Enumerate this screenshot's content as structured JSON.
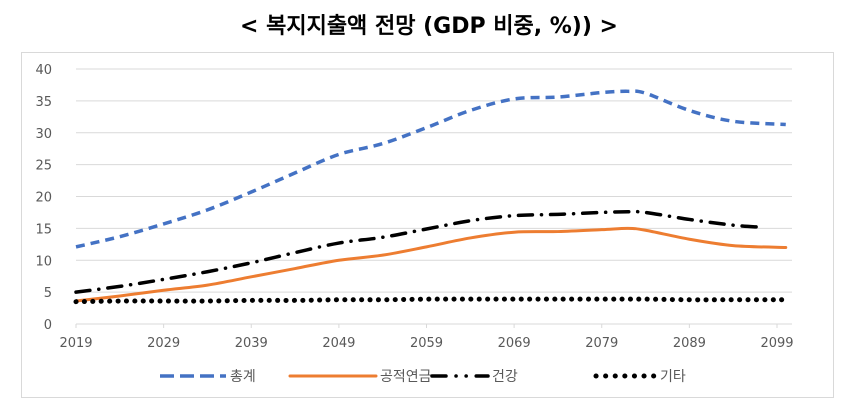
{
  "chart_data": {
    "type": "line",
    "title": "< 복지지출액 전망 (GDP 비중, %)) >",
    "xlabel": "",
    "ylabel": "",
    "ylim": [
      0,
      40
    ],
    "yticks": [
      0,
      5,
      10,
      15,
      20,
      25,
      30,
      35,
      40
    ],
    "xticks": [
      2019,
      2029,
      2039,
      2049,
      2059,
      2069,
      2079,
      2089,
      2099
    ],
    "grid": true,
    "legend_position": "bottom",
    "x": [
      2019,
      2024,
      2029,
      2034,
      2039,
      2044,
      2049,
      2054,
      2059,
      2064,
      2069,
      2074,
      2079,
      2082,
      2084,
      2089,
      2094,
      2100
    ],
    "series": [
      {
        "name": "총계",
        "color": "#4472C4",
        "style": "dash",
        "values": [
          12.1,
          13.7,
          15.7,
          17.9,
          20.7,
          23.7,
          26.6,
          28.3,
          30.8,
          33.5,
          35.3,
          35.6,
          36.3,
          36.5,
          36.2,
          33.5,
          31.8,
          31.3
        ]
      },
      {
        "name": "공적연금",
        "color": "#ED7D31",
        "style": "solid",
        "values": [
          3.6,
          4.4,
          5.3,
          6.1,
          7.4,
          8.7,
          10.0,
          10.8,
          12.1,
          13.5,
          14.4,
          14.5,
          14.8,
          15.0,
          14.7,
          13.3,
          12.3,
          12.0
        ]
      },
      {
        "name": "건강",
        "color": "#000000",
        "style": "longdashdot",
        "values": [
          5.0,
          5.9,
          7.0,
          8.2,
          9.6,
          11.2,
          12.7,
          13.6,
          14.9,
          16.2,
          17.0,
          17.2,
          17.5,
          17.6,
          17.5,
          16.4,
          15.5,
          15.2
        ]
      },
      {
        "name": "기타",
        "color": "#000000",
        "style": "dot",
        "values": [
          3.5,
          3.6,
          3.6,
          3.6,
          3.7,
          3.7,
          3.8,
          3.8,
          3.9,
          3.9,
          3.9,
          3.9,
          3.9,
          3.9,
          3.9,
          3.8,
          3.8,
          3.8
        ]
      }
    ]
  }
}
